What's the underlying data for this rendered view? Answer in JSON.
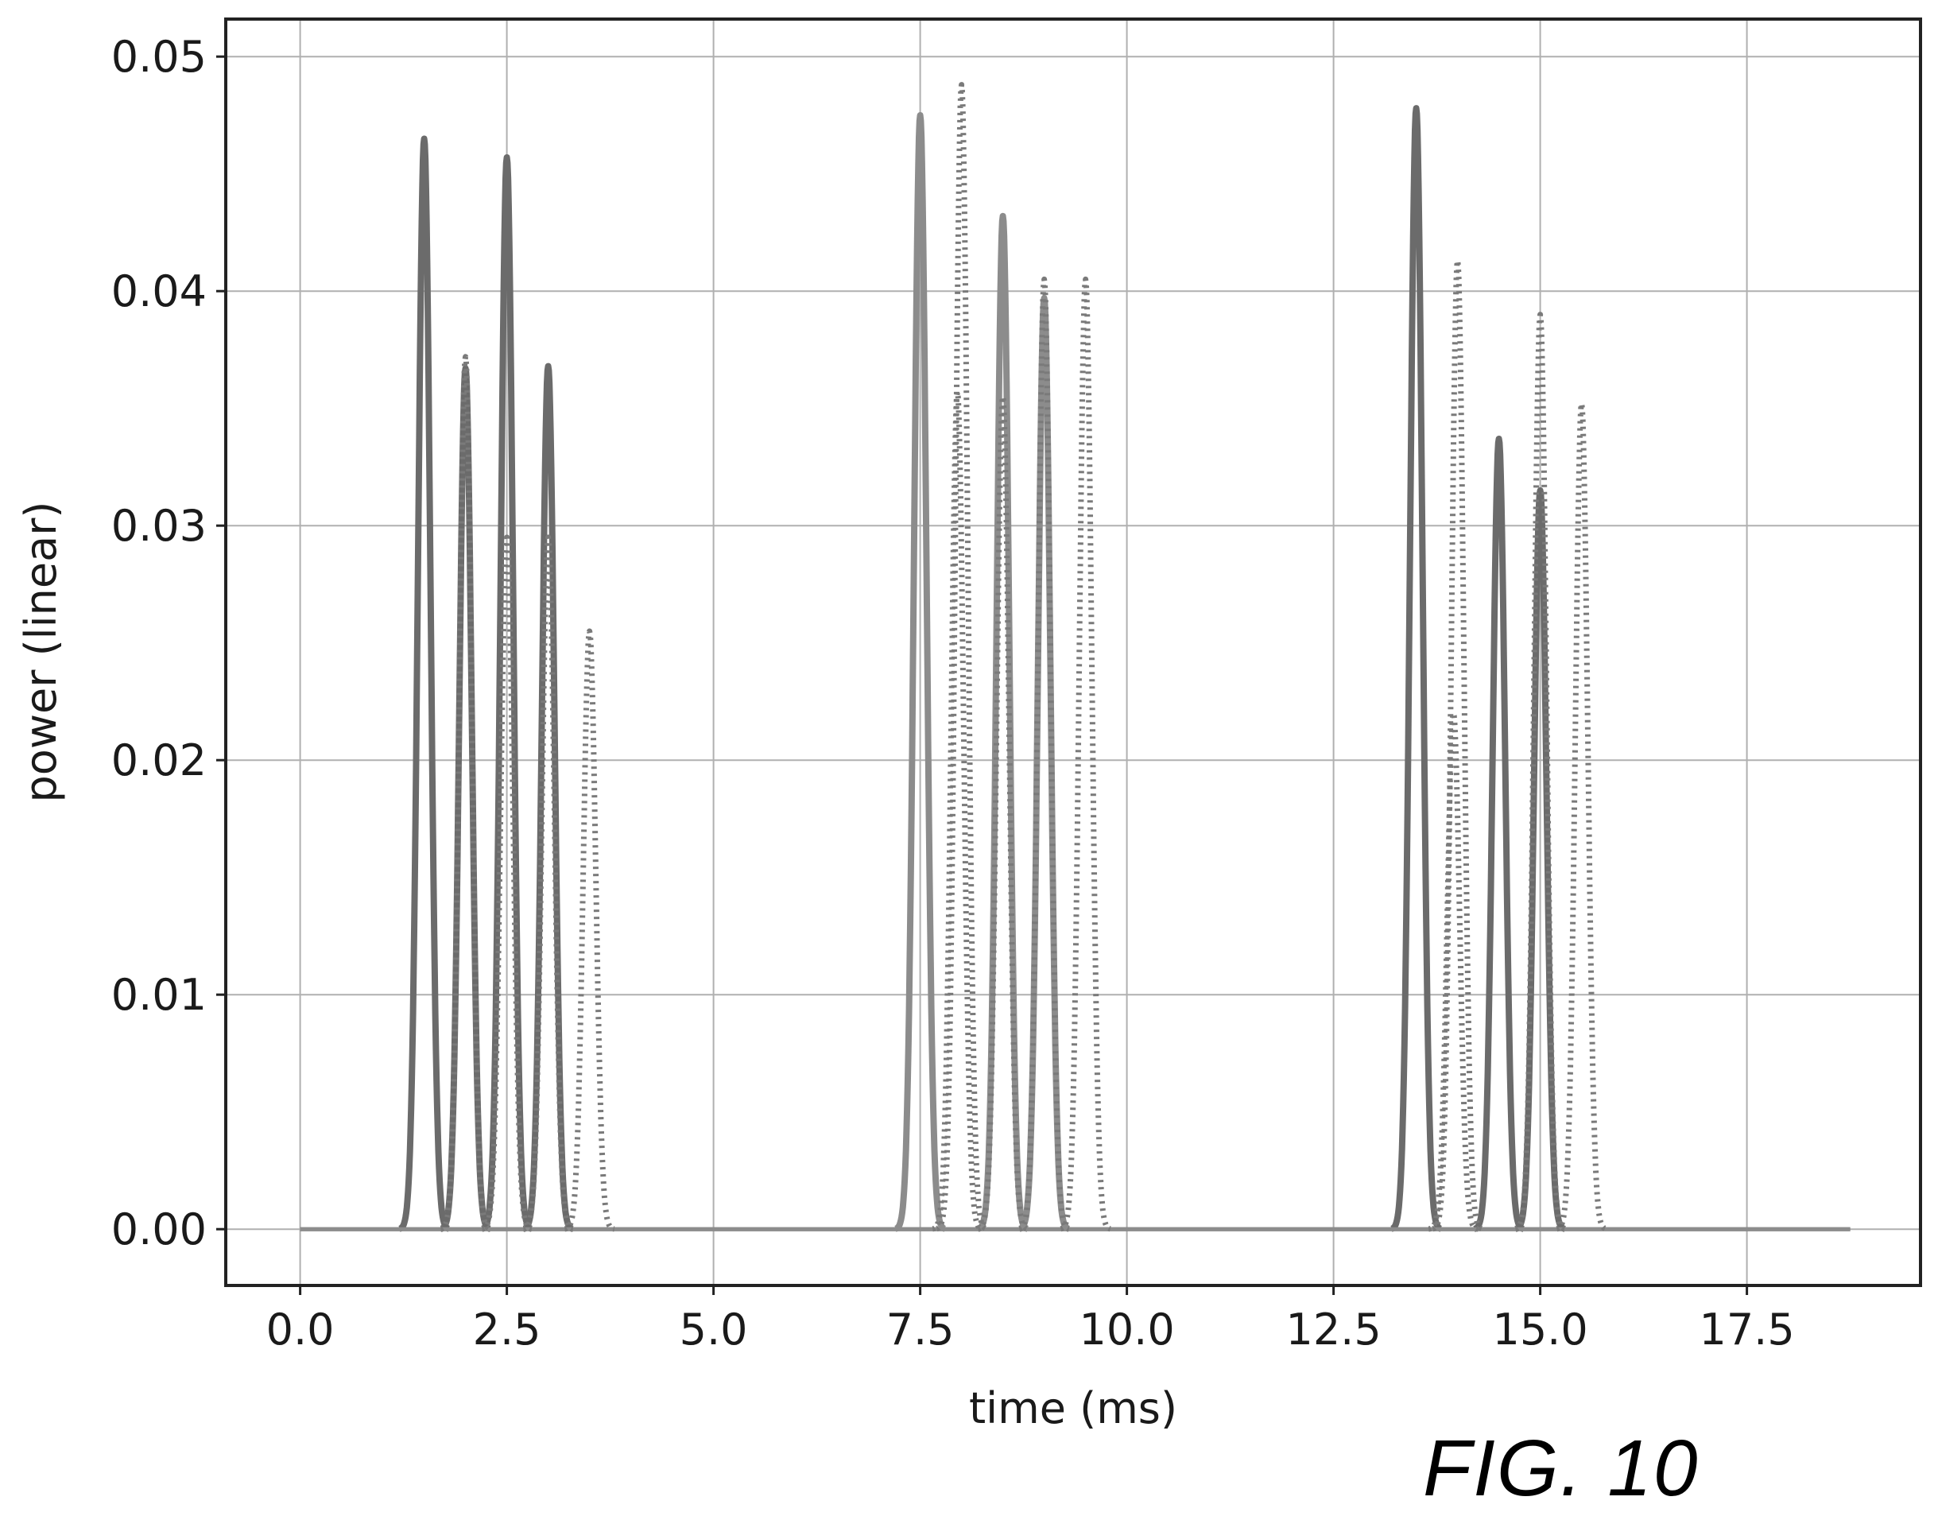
{
  "figure_caption": "FIG. 10",
  "chart_data": {
    "type": "line",
    "xlabel": "time (ms)",
    "ylabel": "power (linear)",
    "xlim": [
      -0.9,
      19.6
    ],
    "ylim": [
      -0.0024,
      0.0516
    ],
    "xticks": [
      0.0,
      2.5,
      5.0,
      7.5,
      10.0,
      12.5,
      15.0,
      17.5
    ],
    "xtick_labels": [
      "0.0",
      "2.5",
      "5.0",
      "7.5",
      "10.0",
      "12.5",
      "15.0",
      "17.5"
    ],
    "yticks": [
      0.0,
      0.01,
      0.02,
      0.03,
      0.04,
      0.05
    ],
    "ytick_labels": [
      "0.00",
      "0.01",
      "0.02",
      "0.03",
      "0.04",
      "0.05"
    ],
    "grid": true,
    "x_end": 18.75,
    "series": [
      {
        "style": "solid",
        "color": "#6b6b6b",
        "pulses": [
          {
            "center": 1.5,
            "peak": 0.0465
          },
          {
            "center": 2.0,
            "peak": 0.0367
          },
          {
            "center": 2.5,
            "peak": 0.0457
          },
          {
            "center": 3.0,
            "peak": 0.0368
          },
          {
            "center": 13.5,
            "peak": 0.0478
          },
          {
            "center": 14.5,
            "peak": 0.0337
          },
          {
            "center": 15.0,
            "peak": 0.0315
          }
        ]
      },
      {
        "style": "solid",
        "color": "#8c8c8c",
        "pulses": [
          {
            "center": 7.5,
            "peak": 0.0475
          },
          {
            "center": 8.5,
            "peak": 0.0432
          },
          {
            "center": 9.0,
            "peak": 0.0397
          }
        ]
      },
      {
        "style": "dotted",
        "color": "#7a7a7a",
        "pulses": [
          {
            "center": 2.0,
            "peak": 0.0372
          },
          {
            "center": 2.5,
            "peak": 0.0295
          },
          {
            "center": 3.0,
            "peak": 0.0295
          },
          {
            "center": 3.5,
            "peak": 0.0255
          },
          {
            "center": 8.0,
            "peak": 0.0488
          },
          {
            "center": 7.95,
            "peak": 0.0357
          },
          {
            "center": 8.5,
            "peak": 0.0355
          },
          {
            "center": 9.0,
            "peak": 0.0405
          },
          {
            "center": 9.5,
            "peak": 0.0405
          },
          {
            "center": 14.0,
            "peak": 0.0413
          },
          {
            "center": 13.95,
            "peak": 0.022
          },
          {
            "center": 15.0,
            "peak": 0.039
          },
          {
            "center": 15.5,
            "peak": 0.0352
          }
        ]
      }
    ]
  }
}
